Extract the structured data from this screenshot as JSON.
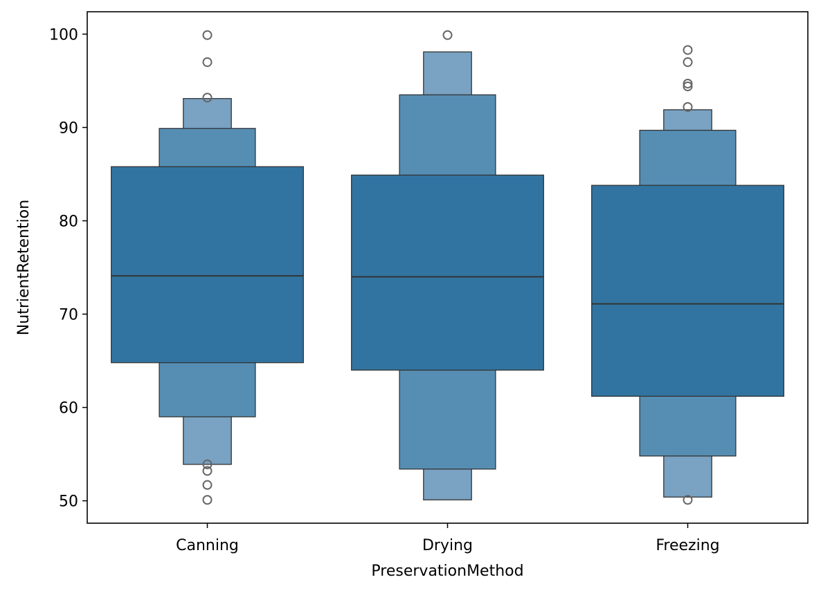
{
  "chart_data": {
    "type": "boxen",
    "title": "",
    "xlabel": "PreservationMethod",
    "ylabel": "NutrientRetention",
    "ylim": [
      47.6,
      102.4
    ],
    "yticks": [
      50,
      60,
      70,
      80,
      90,
      100
    ],
    "ytick_labels": [
      "50",
      "60",
      "70",
      "80",
      "90",
      "100"
    ],
    "categories": [
      "Canning",
      "Drying",
      "Freezing"
    ],
    "grid": false,
    "legend": "none",
    "colors": {
      "box_level_1": "#3274a1",
      "box_level_2": "#568eb3",
      "box_level_3": "#79a2c3",
      "edge": "#333333",
      "median": "#333333",
      "outlier": "#666666"
    },
    "boxes": [
      {
        "category": "Canning",
        "median": 74.1,
        "levels": [
          {
            "low": 64.8,
            "high": 85.8
          },
          {
            "low": 59.0,
            "high": 89.9
          },
          {
            "low": 53.9,
            "high": 93.1
          }
        ],
        "outliers": [
          99.9,
          97.0,
          93.2,
          53.9,
          53.2,
          51.7,
          50.1
        ]
      },
      {
        "category": "Drying",
        "median": 74.0,
        "levels": [
          {
            "low": 64.0,
            "high": 84.9
          },
          {
            "low": 53.4,
            "high": 93.5
          },
          {
            "low": 50.1,
            "high": 98.1
          }
        ],
        "outliers": [
          99.9
        ]
      },
      {
        "category": "Freezing",
        "median": 71.1,
        "levels": [
          {
            "low": 61.2,
            "high": 83.8
          },
          {
            "low": 54.8,
            "high": 89.7
          },
          {
            "low": 50.4,
            "high": 91.9
          }
        ],
        "outliers": [
          98.3,
          97.0,
          94.7,
          94.4,
          92.2,
          50.1
        ]
      }
    ]
  }
}
